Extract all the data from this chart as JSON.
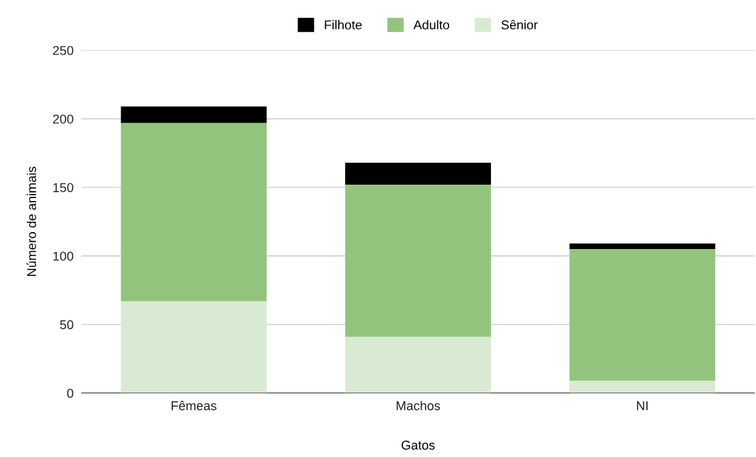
{
  "chart_data": {
    "type": "bar",
    "stacked": true,
    "xlabel": "Gatos",
    "ylabel": "Número de animais",
    "categories": [
      "Fêmeas",
      "Machos",
      "NI"
    ],
    "series": [
      {
        "name": "Sênior",
        "color": "#d9ead3",
        "values": [
          67,
          41,
          9
        ]
      },
      {
        "name": "Adulto",
        "color": "#93c47d",
        "values": [
          130,
          111,
          96
        ]
      },
      {
        "name": "Filhote",
        "color": "#000000",
        "values": [
          12,
          16,
          4
        ]
      }
    ],
    "ylim": [
      0,
      250
    ],
    "yticks": [
      0,
      50,
      100,
      150,
      200,
      250
    ],
    "grid": "y",
    "legend": "top"
  }
}
